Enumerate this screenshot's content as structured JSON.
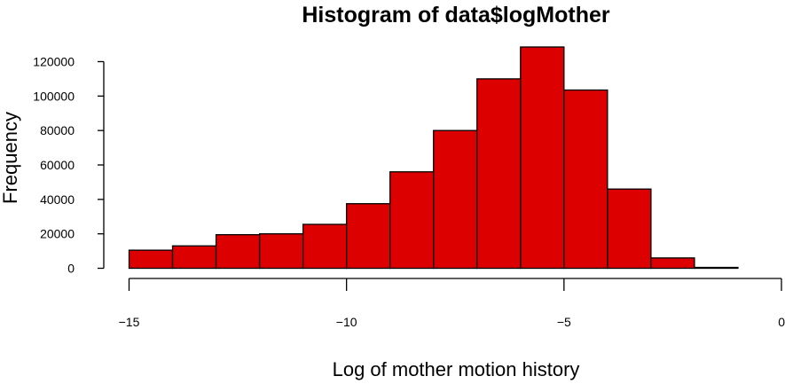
{
  "chart_data": {
    "type": "bar",
    "title": "Histogram of data$logMother",
    "xlabel": "Log of mother motion history",
    "ylabel": "Frequency",
    "bin_edges": [
      -15,
      -14,
      -13,
      -12,
      -11,
      -10,
      -9,
      -8,
      -7,
      -6,
      -5,
      -4,
      -3,
      -2,
      -1,
      0
    ],
    "values": [
      10500,
      13000,
      19500,
      20000,
      25500,
      37500,
      56000,
      80000,
      110000,
      128500,
      103500,
      46000,
      6000,
      500,
      0
    ],
    "xlim": [
      -15,
      0
    ],
    "ylim": [
      0,
      120000
    ],
    "x_ticks": [
      -15,
      -10,
      -5,
      0
    ],
    "x_tick_labels": [
      "−15",
      "−10",
      "−5",
      "0"
    ],
    "y_ticks": [
      0,
      20000,
      40000,
      60000,
      80000,
      100000,
      120000
    ],
    "y_tick_labels": [
      "0",
      "20000",
      "40000",
      "60000",
      "80000",
      "100000",
      "120000"
    ],
    "bar_color": "#dd0000",
    "grid": false,
    "legend": "none"
  }
}
